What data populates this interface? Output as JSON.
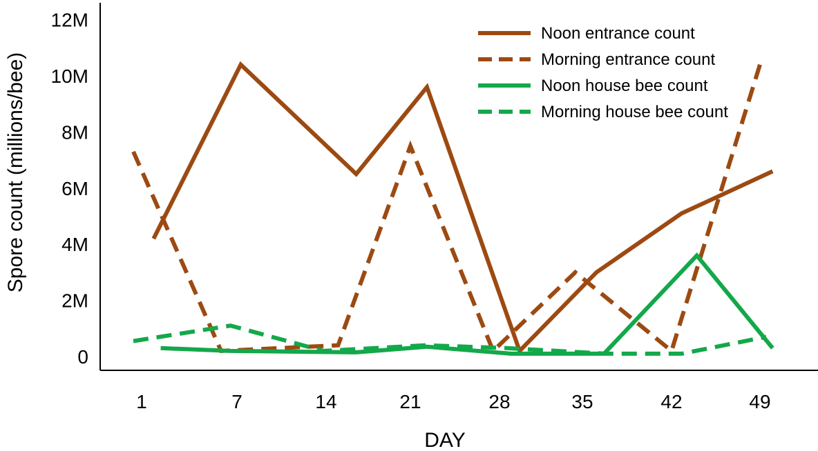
{
  "chart_data": {
    "type": "line",
    "xlabel": "DAY",
    "ylabel": "Spore count (millions/bee)",
    "ylim": [
      0,
      12
    ],
    "y_ticks": [
      {
        "value": 0,
        "label": "0"
      },
      {
        "value": 2,
        "label": "2M"
      },
      {
        "value": 4,
        "label": "4M"
      },
      {
        "value": 6,
        "label": "6M"
      },
      {
        "value": 8,
        "label": "8M"
      },
      {
        "value": 10,
        "label": "10M"
      },
      {
        "value": 12,
        "label": "12M"
      }
    ],
    "x_ticks": [
      "1",
      "7",
      "14",
      "21",
      "28",
      "35",
      "42",
      "49"
    ],
    "legend_position": "top-right",
    "grid": false,
    "series": [
      {
        "name": "Noon entrance count",
        "color": "#9C4A12",
        "dash": false,
        "points": [
          [
            1.75,
            4.2
          ],
          [
            7.3,
            10.4
          ],
          [
            16.5,
            6.5
          ],
          [
            22.3,
            9.6
          ],
          [
            29.7,
            0.2
          ],
          [
            36.1,
            3.0
          ],
          [
            42.8,
            5.1
          ],
          [
            50.0,
            6.6
          ]
        ]
      },
      {
        "name": "Morning entrance count",
        "color": "#9C4A12",
        "dash": true,
        "points": [
          [
            0,
            7.3
          ],
          [
            6.0,
            0.2
          ],
          [
            15.0,
            0.4
          ],
          [
            21.0,
            7.5
          ],
          [
            27.5,
            0.2
          ],
          [
            34.4,
            3.0
          ],
          [
            42.0,
            0.2
          ],
          [
            49.0,
            10.4
          ]
        ]
      },
      {
        "name": "Noon house bee count",
        "color": "#13A84A",
        "dash": false,
        "points": [
          [
            2.2,
            0.3
          ],
          [
            6.6,
            0.2
          ],
          [
            16.5,
            0.15
          ],
          [
            22.3,
            0.35
          ],
          [
            29.0,
            0.1
          ],
          [
            36.7,
            0.1
          ],
          [
            44.0,
            3.6
          ],
          [
            50.0,
            0.3
          ]
        ]
      },
      {
        "name": "Morning house bee count",
        "color": "#13A84A",
        "dash": true,
        "points": [
          [
            0,
            0.55
          ],
          [
            6.6,
            1.1
          ],
          [
            13.8,
            0.2
          ],
          [
            22.2,
            0.4
          ],
          [
            28.6,
            0.3
          ],
          [
            36.9,
            0.1
          ],
          [
            42.8,
            0.1
          ],
          [
            49.5,
            0.7
          ]
        ]
      }
    ]
  }
}
